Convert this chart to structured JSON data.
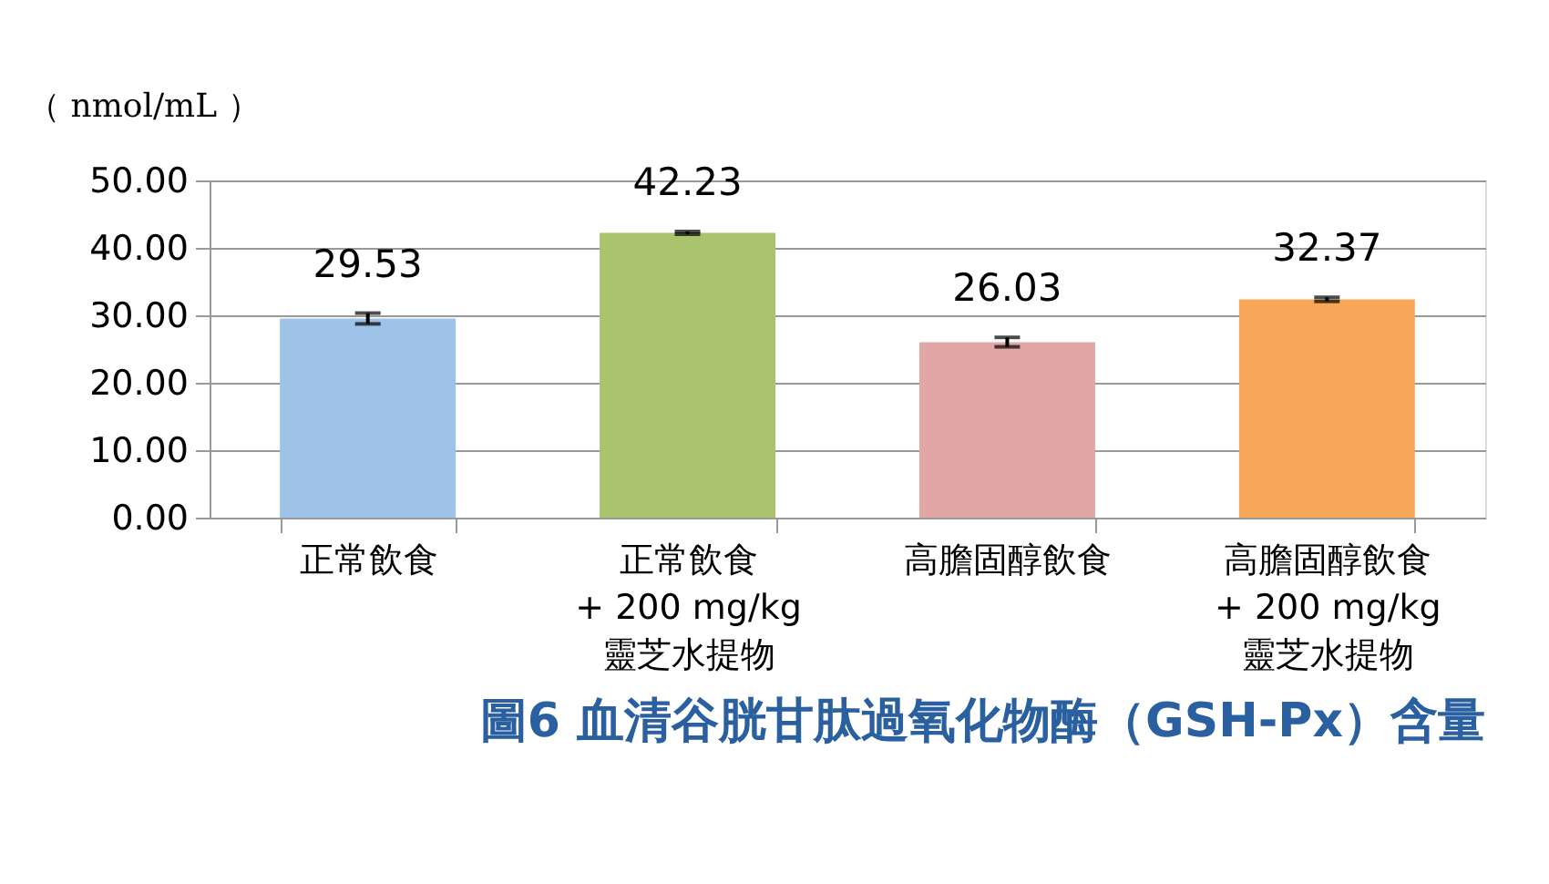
{
  "chart_data": {
    "type": "bar",
    "title": "圖6  血清谷胱甘肽過氧化物酶（GSH-Px）含量",
    "ylabel": "（ nmol/mL ）",
    "categories": [
      "正常飲食",
      "正常飲食\n+ 200 mg/kg\n靈芝水提物",
      "高膽固醇飲食",
      "高膽固醇飲食\n+ 200 mg/kg\n靈芝水提物"
    ],
    "values": [
      29.53,
      42.23,
      26.03,
      32.37
    ],
    "colors": [
      "#9fc2e8",
      "#a9c46c",
      "#e0a7a5",
      "#f8a758"
    ],
    "errors": [
      0.8,
      0.2,
      0.7,
      0.3
    ],
    "ylim": [
      0,
      50
    ],
    "yticks": [
      {
        "value": 0,
        "label": "0.00"
      },
      {
        "value": 10,
        "label": "10.00"
      },
      {
        "value": 20,
        "label": "20.00"
      },
      {
        "value": 30,
        "label": "30.00"
      },
      {
        "value": 40,
        "label": "40.00"
      },
      {
        "value": 50,
        "label": "50.00"
      }
    ],
    "grid": "y",
    "data_labels": true,
    "legend": false
  }
}
